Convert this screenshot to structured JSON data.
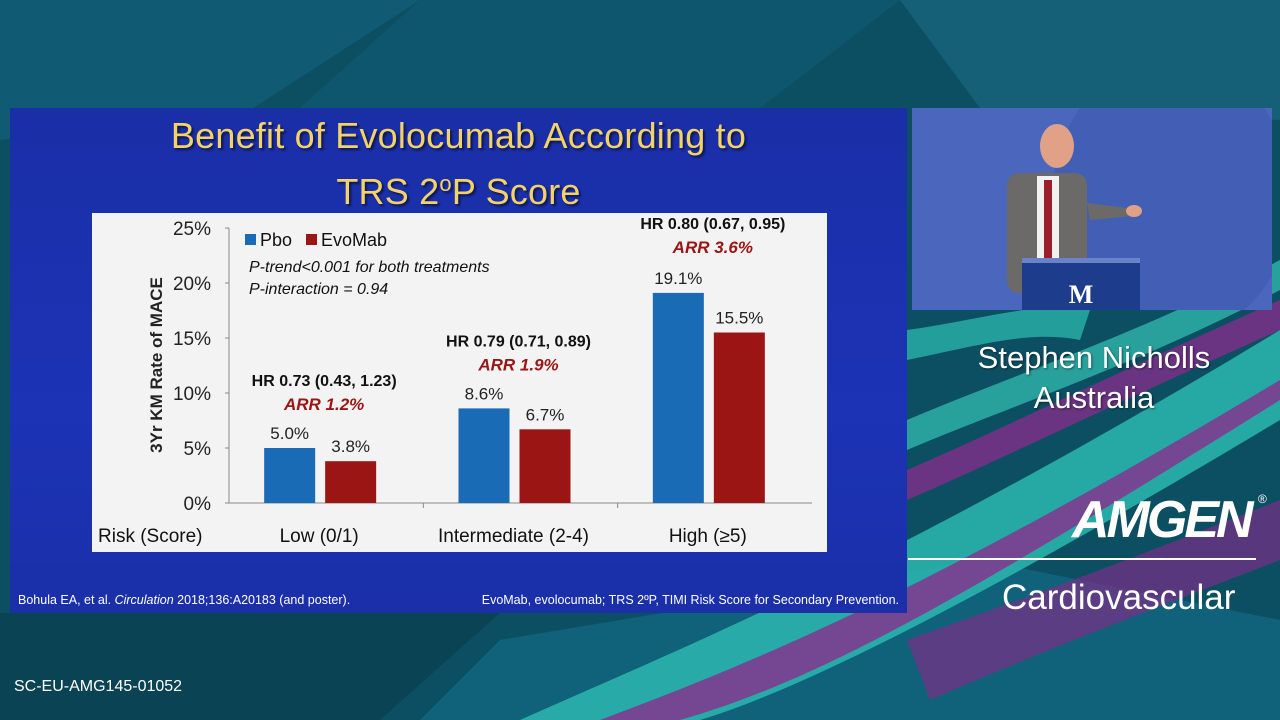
{
  "slide": {
    "title_line1": "Benefit of Evolocumab According to",
    "title_line2_pre": "TRS 2",
    "title_line2_sup": "o",
    "title_line2_post": "P Score",
    "footnote_left_pre": "Bohula EA, et al. ",
    "footnote_left_journal": "Circulation",
    "footnote_left_post": " 2018;136:A20183 (and poster).",
    "footnote_right": "EvoMab, evolocumab; TRS 2ºP, TIMI Risk Score for Secondary Prevention."
  },
  "chart_data": {
    "type": "bar",
    "ylabel": "3Yr KM Rate of MACE",
    "xlabel": "Risk (Score)",
    "ylim": [
      0,
      25
    ],
    "yticks": [
      "0%",
      "5%",
      "10%",
      "15%",
      "20%",
      "25%"
    ],
    "categories": [
      "Low (0/1)",
      "Intermediate (2-4)",
      "High (≥5)"
    ],
    "series": [
      {
        "name": "Pbo",
        "color": "#1a6bb5",
        "values": [
          5.0,
          8.6,
          19.1
        ],
        "labels": [
          "5.0%",
          "8.6%",
          "19.1%"
        ]
      },
      {
        "name": "EvoMab",
        "color": "#9b1515",
        "values": [
          3.8,
          6.7,
          15.5
        ],
        "labels": [
          "3.8%",
          "6.7%",
          "15.5%"
        ]
      }
    ],
    "annotations": {
      "hr": [
        "HR 0.73 (0.43, 1.23)",
        "HR 0.79 (0.71, 0.89)",
        "HR 0.80 (0.67, 0.95)"
      ],
      "arr": [
        "ARR 1.2%",
        "ARR 1.9%",
        "ARR 3.6%"
      ],
      "stat_lines": [
        "P-trend<0.001 for both treatments",
        "P-interaction = 0.94"
      ]
    },
    "legend_position": "top-left",
    "grid": false
  },
  "speaker": {
    "name": "Stephen Nicholls",
    "country": "Australia",
    "podium_logo": "M"
  },
  "branding": {
    "company": "AMGEN",
    "registered": "®",
    "division": "Cardiovascular"
  },
  "code": "SC-EU-AMG145-01052",
  "colors": {
    "title": "#f3d26a",
    "slide_bg": "#1c33b6",
    "annotation_red": "#9b1515",
    "pbo_blue": "#1a6bb5"
  }
}
